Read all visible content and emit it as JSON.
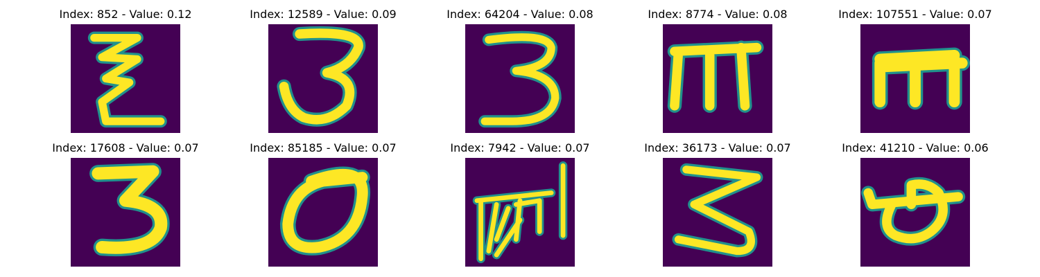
{
  "panels": [
    {
      "title": "Index: 852 - Value: 0.12"
    },
    {
      "title": "Index: 12589 - Value: 0.09"
    },
    {
      "title": "Index: 64204 - Value: 0.08"
    },
    {
      "title": "Index: 8774 - Value: 0.08"
    },
    {
      "title": "Index: 107551 - Value: 0.07"
    },
    {
      "title": "Index: 17608 - Value: 0.07"
    },
    {
      "title": "Index: 85185 - Value: 0.07"
    },
    {
      "title": "Index: 7942 - Value: 0.07"
    },
    {
      "title": "Index: 36173 - Value: 0.07"
    },
    {
      "title": "Index: 41210 - Value: 0.06"
    }
  ],
  "colors": {
    "background": "#440154",
    "stroke": "#fde725",
    "edge": "#21918c"
  }
}
